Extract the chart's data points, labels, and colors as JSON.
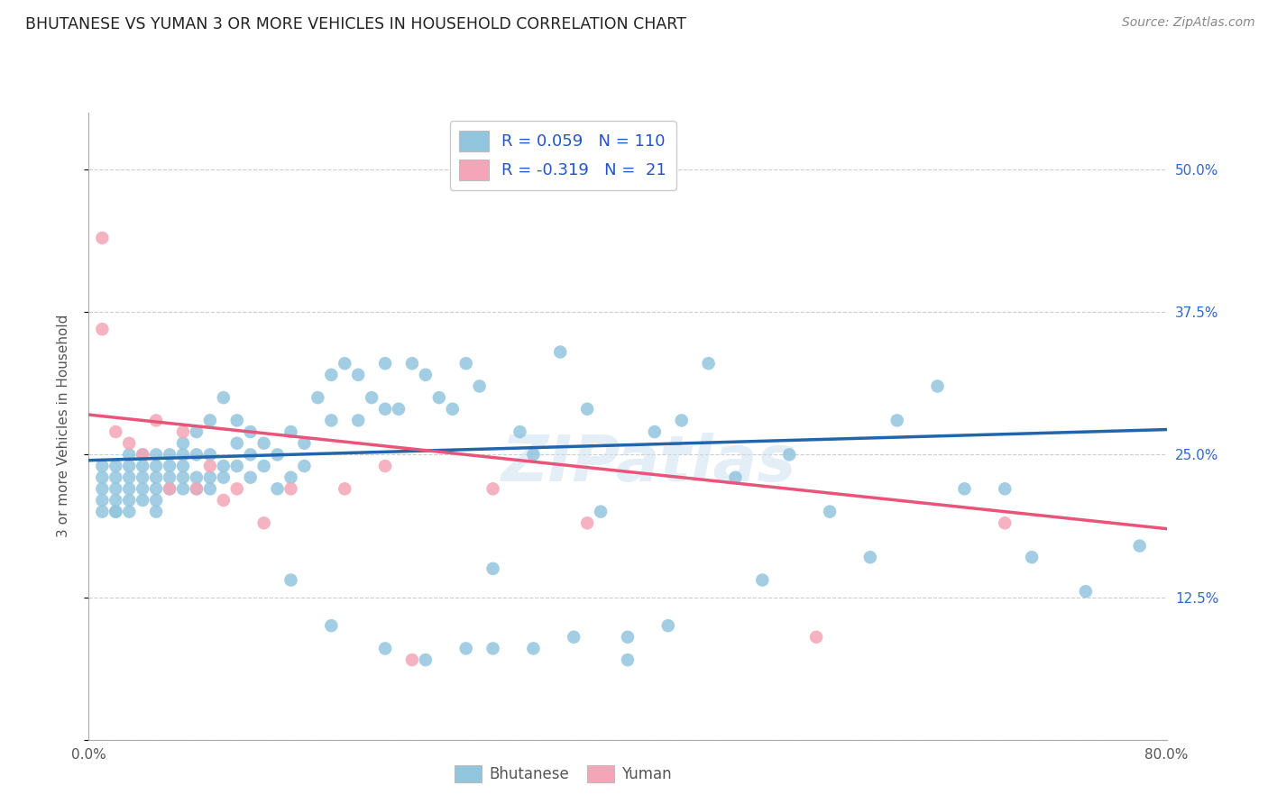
{
  "title": "BHUTANESE VS YUMAN 3 OR MORE VEHICLES IN HOUSEHOLD CORRELATION CHART",
  "source": "Source: ZipAtlas.com",
  "ylabel": "3 or more Vehicles in Household",
  "x_ticks": [
    0.0,
    0.1,
    0.2,
    0.3,
    0.4,
    0.5,
    0.6,
    0.7,
    0.8
  ],
  "x_tick_labels": [
    "0.0%",
    "",
    "",
    "",
    "",
    "",
    "",
    "",
    "80.0%"
  ],
  "y_ticks": [
    0.0,
    0.125,
    0.25,
    0.375,
    0.5
  ],
  "y_tick_labels_right": [
    "",
    "12.5%",
    "25.0%",
    "37.5%",
    "50.0%"
  ],
  "xlim": [
    0.0,
    0.8
  ],
  "ylim": [
    0.0,
    0.55
  ],
  "color_blue": "#92c5de",
  "color_pink": "#f4a6b8",
  "line_color_blue": "#2166ac",
  "line_color_pink": "#e8547a",
  "background_color": "#ffffff",
  "watermark": "ZIPatlas",
  "bhutanese_x": [
    0.01,
    0.01,
    0.01,
    0.01,
    0.01,
    0.02,
    0.02,
    0.02,
    0.02,
    0.02,
    0.02,
    0.03,
    0.03,
    0.03,
    0.03,
    0.03,
    0.03,
    0.04,
    0.04,
    0.04,
    0.04,
    0.04,
    0.05,
    0.05,
    0.05,
    0.05,
    0.05,
    0.05,
    0.06,
    0.06,
    0.06,
    0.06,
    0.07,
    0.07,
    0.07,
    0.07,
    0.07,
    0.08,
    0.08,
    0.08,
    0.08,
    0.09,
    0.09,
    0.09,
    0.09,
    0.1,
    0.1,
    0.1,
    0.11,
    0.11,
    0.11,
    0.12,
    0.12,
    0.12,
    0.13,
    0.13,
    0.14,
    0.14,
    0.15,
    0.15,
    0.16,
    0.16,
    0.17,
    0.18,
    0.18,
    0.19,
    0.2,
    0.2,
    0.21,
    0.22,
    0.22,
    0.23,
    0.24,
    0.25,
    0.26,
    0.27,
    0.28,
    0.29,
    0.3,
    0.32,
    0.33,
    0.35,
    0.37,
    0.38,
    0.4,
    0.42,
    0.44,
    0.46,
    0.48,
    0.5,
    0.52,
    0.55,
    0.58,
    0.6,
    0.63,
    0.65,
    0.68,
    0.7,
    0.74,
    0.78,
    0.15,
    0.18,
    0.22,
    0.25,
    0.28,
    0.3,
    0.33,
    0.36,
    0.4,
    0.43
  ],
  "bhutanese_y": [
    0.22,
    0.23,
    0.24,
    0.21,
    0.2,
    0.24,
    0.22,
    0.2,
    0.23,
    0.21,
    0.2,
    0.22,
    0.21,
    0.23,
    0.24,
    0.2,
    0.25,
    0.22,
    0.23,
    0.24,
    0.21,
    0.25,
    0.22,
    0.23,
    0.24,
    0.2,
    0.21,
    0.25,
    0.22,
    0.23,
    0.24,
    0.25,
    0.22,
    0.23,
    0.24,
    0.26,
    0.25,
    0.22,
    0.23,
    0.25,
    0.27,
    0.22,
    0.23,
    0.25,
    0.28,
    0.23,
    0.24,
    0.3,
    0.24,
    0.26,
    0.28,
    0.23,
    0.25,
    0.27,
    0.24,
    0.26,
    0.22,
    0.25,
    0.23,
    0.27,
    0.24,
    0.26,
    0.3,
    0.32,
    0.28,
    0.33,
    0.28,
    0.32,
    0.3,
    0.29,
    0.33,
    0.29,
    0.33,
    0.32,
    0.3,
    0.29,
    0.33,
    0.31,
    0.15,
    0.27,
    0.25,
    0.34,
    0.29,
    0.2,
    0.07,
    0.27,
    0.28,
    0.33,
    0.23,
    0.14,
    0.25,
    0.2,
    0.16,
    0.28,
    0.31,
    0.22,
    0.22,
    0.16,
    0.13,
    0.17,
    0.14,
    0.1,
    0.08,
    0.07,
    0.08,
    0.08,
    0.08,
    0.09,
    0.09,
    0.1
  ],
  "yuman_x": [
    0.01,
    0.01,
    0.02,
    0.03,
    0.04,
    0.05,
    0.06,
    0.07,
    0.08,
    0.09,
    0.1,
    0.11,
    0.13,
    0.15,
    0.19,
    0.22,
    0.24,
    0.3,
    0.37,
    0.54,
    0.68
  ],
  "yuman_y": [
    0.44,
    0.36,
    0.27,
    0.26,
    0.25,
    0.28,
    0.22,
    0.27,
    0.22,
    0.24,
    0.21,
    0.22,
    0.19,
    0.22,
    0.22,
    0.24,
    0.07,
    0.22,
    0.19,
    0.09,
    0.19
  ]
}
